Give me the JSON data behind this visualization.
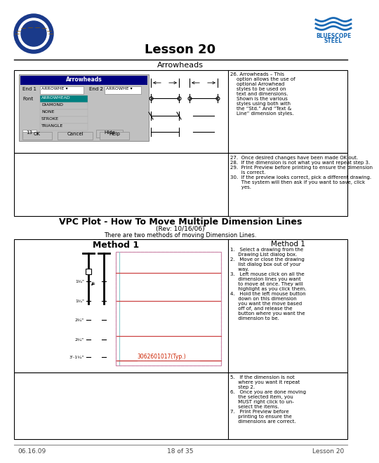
{
  "title": "Lesson 20",
  "subtitle_arrowheads": "Arrowheads",
  "section_title": "VPC Plot - How To Move Multiple Dimension Lines",
  "section_subtitle": "(Rev: 10/16/06)",
  "section_desc": "There are two methods of moving Dimension Lines.",
  "method1_label": "Method 1",
  "method1_col_label": "Method 1",
  "annotation_label": "3062601017(Typ.)",
  "footer_left": "06.16.09",
  "footer_center": "18 of 35",
  "footer_right": "Lesson 20",
  "lines_26": [
    "26. Arrowheads – This",
    "    option allows the use of",
    "    optional Arrowhead",
    "    styles to be used on",
    "    text and dimensions.",
    "    Shown is the various",
    "    styles using both with",
    "    the “Std.” And “Text &",
    "    Line” dimension styles."
  ],
  "lines_2730": [
    "27.  Once desired changes have been made OK out.",
    "28.  If the dimension is not what you want repeat step 3.",
    "29.  Print Preview before printing to ensure the dimension",
    "       is correct.",
    "30.  If the preview looks correct, pick a different drawing.",
    "       The system will then ask if you want to save, click",
    "       yes."
  ],
  "steps_right": [
    "1.   Select a drawing from the",
    "     Drawing List dialog box.",
    "2.   Move or close the drawing",
    "     list dialog box out of your",
    "     way.",
    "3.   Left mouse click on all the",
    "     dimension lines you want",
    "     to move at once. They will",
    "     highlight as you click them.",
    "4.   Hold the left mouse button",
    "     down on this dimension",
    "     you want the move based",
    "     off of, and release the",
    "     button where you want the",
    "     dimension to be."
  ],
  "steps_bot": [
    "5.   If the dimension is not",
    "     where you want it repeat",
    "     step 2.",
    "6.   Once you are done moving",
    "     the selected item, you",
    "     MUST right click to un-",
    "     select the items.",
    "7.   Print Preview before",
    "     printing to ensure the",
    "     dimensions are correct."
  ],
  "dim_labels": [
    "1¼\"",
    "1¾\"",
    "2¼\"",
    "2¾\"",
    "3’-1¼\""
  ],
  "bg_color": "#ffffff",
  "border_color": "#000000",
  "dialog_bg": "#c0c0c0",
  "dialog_highlight": "#008080",
  "pink_line_color": "#ffaacc",
  "pink_dash_color": "#cc88aa",
  "red_line_color": "#cc4444",
  "cyan_line_color": "#88cccc",
  "annotation_color": "#cc2200",
  "footer_line_color": "#888888"
}
